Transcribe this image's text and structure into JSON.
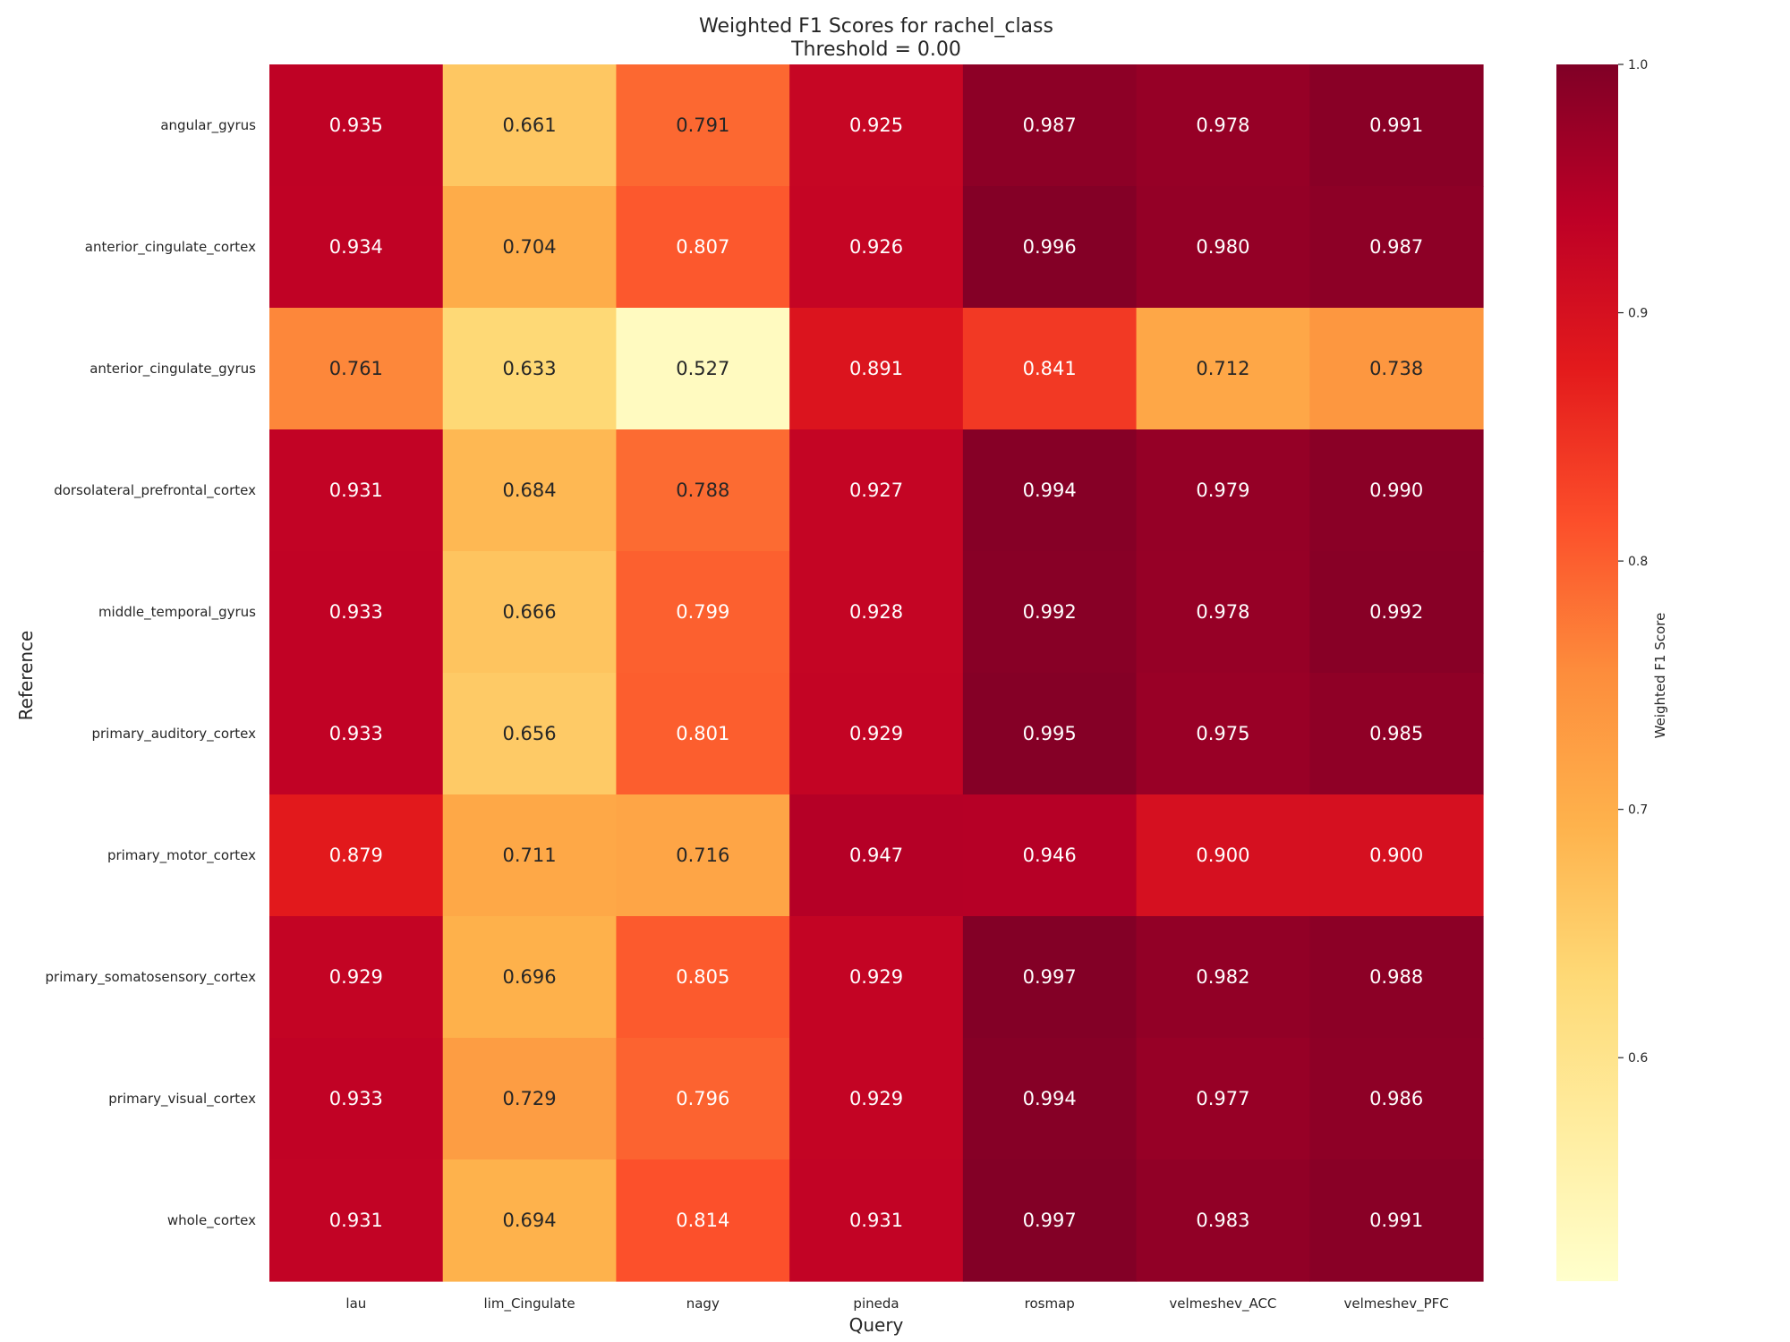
{
  "chart_data": {
    "type": "heatmap",
    "title": "Weighted F1 Scores for rachel_class",
    "subtitle": "Threshold = 0.00",
    "xlabel": "Query",
    "ylabel": "Reference",
    "x_categories": [
      "lau",
      "lim_Cingulate",
      "nagy",
      "pineda",
      "rosmap",
      "velmeshev_ACC",
      "velmeshev_PFC"
    ],
    "y_categories": [
      "angular_gyrus",
      "anterior_cingulate_cortex",
      "anterior_cingulate_gyrus",
      "dorsolateral_prefrontal_cortex",
      "middle_temporal_gyrus",
      "primary_auditory_cortex",
      "primary_motor_cortex",
      "primary_somatosensory_cortex",
      "primary_visual_cortex",
      "whole_cortex"
    ],
    "values": [
      [
        0.935,
        0.661,
        0.791,
        0.925,
        0.987,
        0.978,
        0.991
      ],
      [
        0.934,
        0.704,
        0.807,
        0.926,
        0.996,
        0.98,
        0.987
      ],
      [
        0.761,
        0.633,
        0.527,
        0.891,
        0.841,
        0.712,
        0.738
      ],
      [
        0.931,
        0.684,
        0.788,
        0.927,
        0.994,
        0.979,
        0.99
      ],
      [
        0.933,
        0.666,
        0.799,
        0.928,
        0.992,
        0.978,
        0.992
      ],
      [
        0.933,
        0.656,
        0.801,
        0.929,
        0.995,
        0.975,
        0.985
      ],
      [
        0.879,
        0.711,
        0.716,
        0.947,
        0.946,
        0.9,
        0.9
      ],
      [
        0.929,
        0.696,
        0.805,
        0.929,
        0.997,
        0.982,
        0.988
      ],
      [
        0.933,
        0.729,
        0.796,
        0.929,
        0.994,
        0.977,
        0.986
      ],
      [
        0.931,
        0.694,
        0.814,
        0.931,
        0.997,
        0.983,
        0.991
      ]
    ],
    "colorbar": {
      "label": "Weighted F1 Score",
      "vmin": 0.51,
      "vmax": 1.0,
      "ticks": [
        "0.6",
        "0.7",
        "0.8",
        "0.9",
        "1.0"
      ],
      "colormap": "YlOrRd",
      "stops": [
        "#ffffcc",
        "#ffeda0",
        "#fed976",
        "#feb24c",
        "#fd8d3c",
        "#fc4e2a",
        "#e31a1c",
        "#bd0026",
        "#800026"
      ]
    }
  }
}
